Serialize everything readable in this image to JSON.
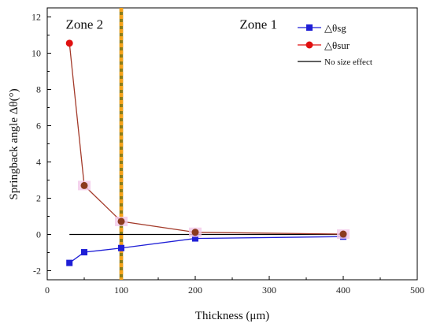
{
  "colors": {
    "sg": "#1f1fd6",
    "sur": "#e01010",
    "sur_line": "#a33a2a",
    "sur_marker_fill": "#8b3a1e",
    "baseline": "#000000",
    "divider_orange": "#f5a21a",
    "divider_olive": "#8a7d1a",
    "highlight": "#f3c8e8"
  },
  "chart_data": {
    "type": "line",
    "xlabel": "Thickness (μm)",
    "ylabel": "Springback angle Δθ(°)",
    "xlim": [
      0,
      500
    ],
    "ylim": [
      -2.5,
      12.5
    ],
    "x_ticks": [
      0,
      100,
      200,
      300,
      400,
      500
    ],
    "y_ticks": [
      -2,
      0,
      2,
      4,
      6,
      8,
      10,
      12
    ],
    "grid": false,
    "legend_position": "top-right",
    "annotations": [
      {
        "text": "Zone 2",
        "x": 25,
        "y": 11.6
      },
      {
        "text": "Zone 1",
        "x": 260,
        "y": 11.6
      }
    ],
    "divider_x": 100,
    "series": [
      {
        "name": "△θsg",
        "marker": "square",
        "x": [
          30,
          50,
          100,
          200,
          400
        ],
        "y": [
          -1.57,
          -0.98,
          -0.75,
          -0.22,
          -0.12
        ]
      },
      {
        "name": "△θsur",
        "marker": "circle",
        "x": [
          30,
          50,
          100,
          200,
          400
        ],
        "y": [
          10.55,
          2.7,
          0.72,
          0.12,
          0.02
        ]
      },
      {
        "name": "No size effect",
        "marker": "none",
        "x": [
          30,
          400
        ],
        "y": [
          0,
          0
        ]
      }
    ]
  }
}
